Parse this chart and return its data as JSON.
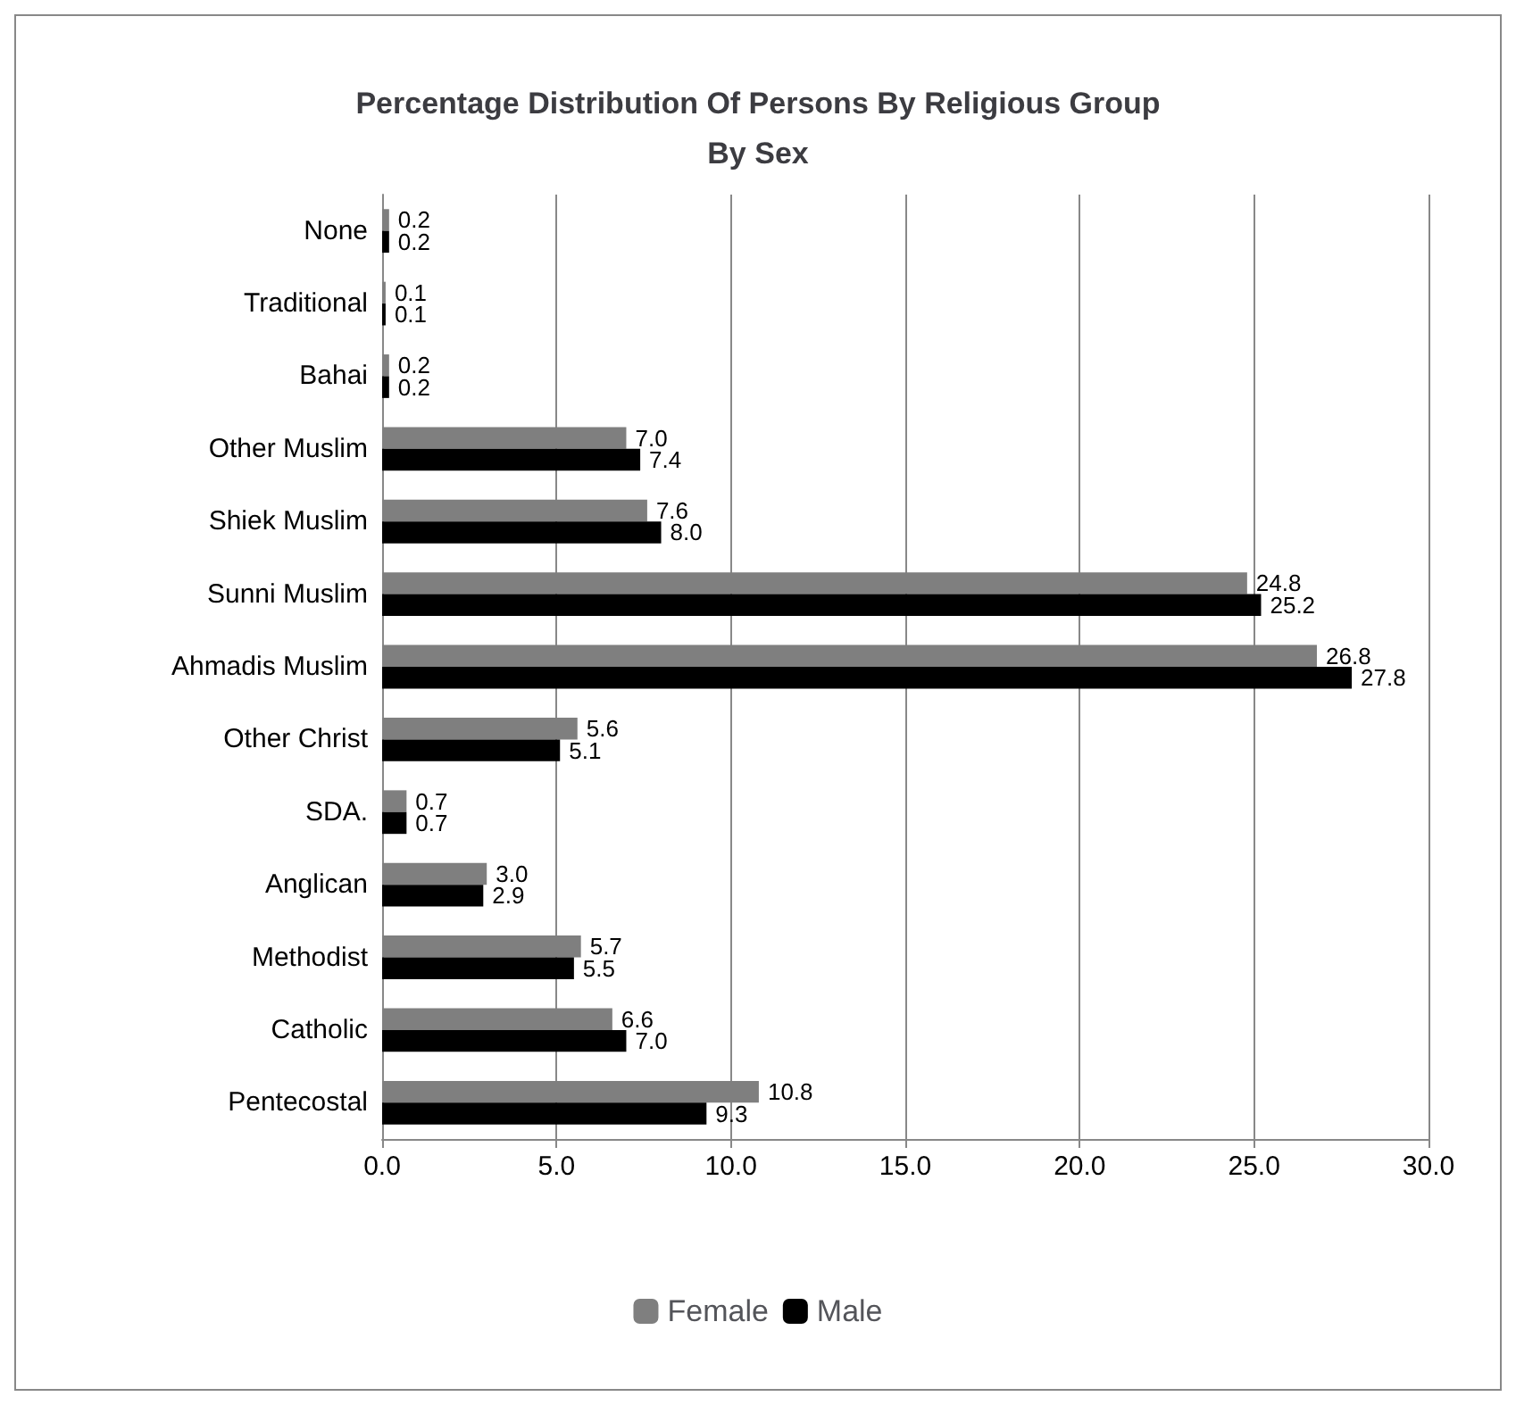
{
  "chart_data": {
    "type": "bar",
    "orientation": "horizontal",
    "title": "Percentage Distribution Of Persons By Religious Group\nBy Sex",
    "categories": [
      "None",
      "Traditional",
      "Bahai",
      "Other Muslim",
      "Shiek Muslim",
      "Sunni Muslim",
      "Ahmadis Muslim",
      "Other Christ",
      "SDA.",
      "Anglican",
      "Methodist",
      "Catholic",
      "Pentecostal"
    ],
    "series": [
      {
        "name": "Female",
        "color": "#7f7f7f",
        "values": [
          0.2,
          0.1,
          0.2,
          7.0,
          7.6,
          24.8,
          26.8,
          5.6,
          0.7,
          3.0,
          5.7,
          6.6,
          10.8
        ],
        "value_labels": [
          "0.2",
          "0.1",
          "0.2",
          "7.0",
          "7.6",
          "24.8",
          "26.8",
          "5.6",
          "0.7",
          "3.0",
          "5.7",
          "6.6",
          "10.8"
        ]
      },
      {
        "name": "Male",
        "color": "#000000",
        "values": [
          0.2,
          0.1,
          0.2,
          7.4,
          8.0,
          25.2,
          27.8,
          5.1,
          0.7,
          2.9,
          5.5,
          7.0,
          9.3
        ],
        "value_labels": [
          "0.2",
          "0.1",
          "0.2",
          "7.4",
          "8.0",
          "25.2",
          "27.8",
          "5.1",
          "0.7",
          "2.9",
          "5.5",
          "7.0",
          "9.3"
        ]
      }
    ],
    "xlim": [
      0,
      30
    ],
    "xticks": [
      {
        "value": 0,
        "label": "0.0"
      },
      {
        "value": 5,
        "label": "5.0"
      },
      {
        "value": 10,
        "label": "10.0"
      },
      {
        "value": 15,
        "label": "15.0"
      },
      {
        "value": 20,
        "label": "20.0"
      },
      {
        "value": 25,
        "label": "25.0"
      },
      {
        "value": 30,
        "label": "30.0"
      }
    ],
    "grid": "x",
    "legend": "bottom"
  }
}
